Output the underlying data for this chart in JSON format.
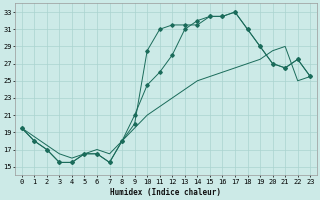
{
  "xlabel": "Humidex (Indice chaleur)",
  "bg_color": "#cceae7",
  "grid_color": "#aad4d0",
  "line_color": "#1a6b5a",
  "xlim": [
    -0.5,
    23.5
  ],
  "ylim": [
    14,
    34
  ],
  "yticks": [
    15,
    17,
    19,
    21,
    23,
    25,
    27,
    29,
    31,
    33
  ],
  "xticks": [
    0,
    1,
    2,
    3,
    4,
    5,
    6,
    7,
    8,
    9,
    10,
    11,
    12,
    13,
    14,
    15,
    16,
    17,
    18,
    19,
    20,
    21,
    22,
    23
  ],
  "line1_y": [
    19.5,
    18.0,
    17.0,
    15.5,
    15.5,
    16.5,
    16.5,
    15.5,
    18.0,
    20.0,
    28.5,
    31.0,
    31.5,
    31.5,
    31.5,
    32.5,
    32.5,
    33.0,
    31.0,
    29.0,
    27.0,
    26.5,
    27.5,
    25.5
  ],
  "line2_y": [
    19.5,
    18.0,
    17.0,
    15.5,
    15.5,
    16.5,
    16.5,
    15.5,
    18.0,
    21.0,
    24.5,
    26.0,
    28.0,
    31.0,
    32.0,
    32.5,
    32.5,
    33.0,
    31.0,
    29.0,
    27.0,
    26.5,
    27.5,
    25.5
  ],
  "line3_y": [
    19.5,
    18.5,
    17.5,
    16.5,
    16.0,
    16.5,
    17.0,
    16.5,
    18.0,
    19.5,
    21.0,
    22.0,
    23.0,
    24.0,
    25.0,
    25.5,
    26.0,
    26.5,
    27.0,
    27.5,
    28.5,
    29.0,
    25.0,
    25.5
  ],
  "xlabel_fontsize": 5.5,
  "tick_fontsize": 5,
  "lw": 0.7,
  "ms": 1.8
}
